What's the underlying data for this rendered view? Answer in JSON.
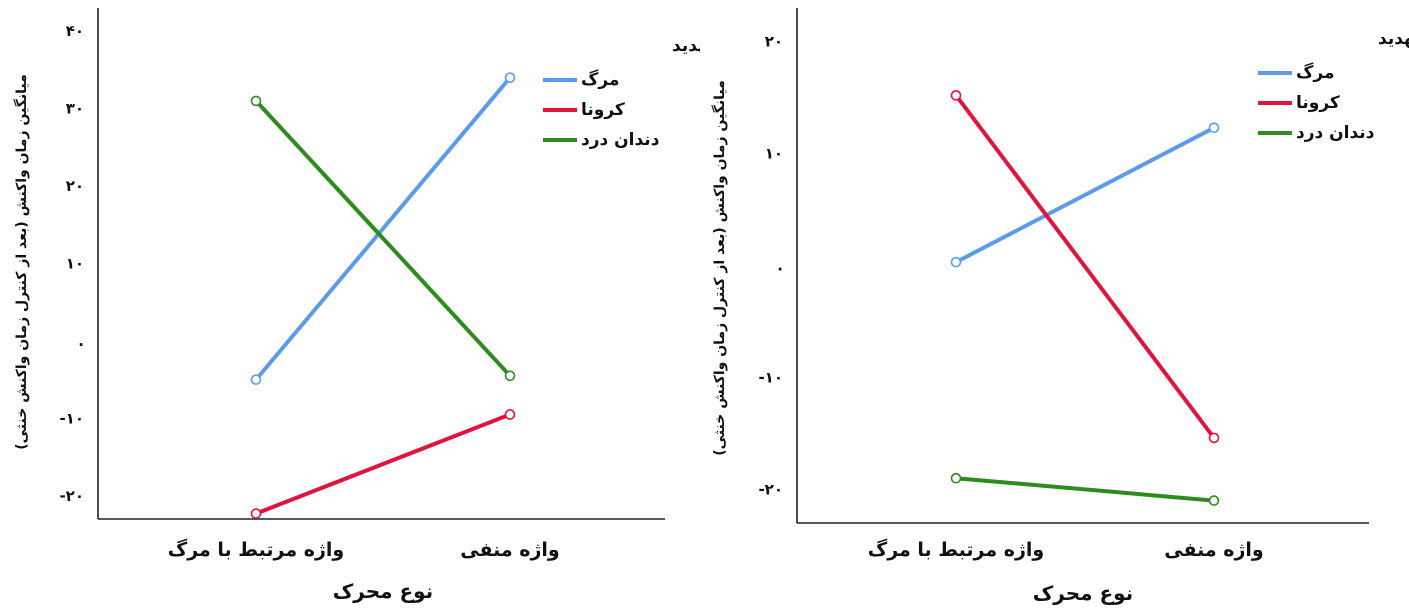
{
  "chart_data": [
    {
      "type": "line",
      "title": "",
      "categories": [
        "واژه مرتبط با مرگ",
        "واژه منفی"
      ],
      "xlabel": "نوع محرک",
      "ylabel": "میانگین زمان واکنش (بعد از کنترل زمان واکنش خنثی)",
      "ylim": [
        -23,
        43
      ],
      "yticks": [
        -20,
        -10,
        0,
        10,
        20,
        30,
        40
      ],
      "ytick_labels": [
        "-۲۰",
        "-۱۰",
        ".",
        "۱۰",
        "۲۰",
        "۳۰",
        "۴۰"
      ],
      "legend_title": "نوع تهدید",
      "legend_position": "top-right",
      "series": [
        {
          "name": "مرگ",
          "color": "#5b9bec",
          "values": [
            -5,
            34
          ]
        },
        {
          "name": "کرونا",
          "color": "#e0143c",
          "values": [
            -22.3,
            -9.5
          ]
        },
        {
          "name": "دندان درد",
          "color": "#2e8b1e",
          "values": [
            31,
            -4.5
          ]
        }
      ]
    },
    {
      "type": "line",
      "title": "",
      "categories": [
        "واژه مرتبط با مرگ",
        "واژه منفی"
      ],
      "xlabel": "نوع محرک",
      "ylabel": "میانگین زمان واکنش (بعد از کنترل زمان واکنش خنثی)",
      "ylim": [
        -23,
        23
      ],
      "yticks": [
        -20,
        -10,
        0,
        10,
        20
      ],
      "ytick_labels": [
        "-۲۰",
        "-۱۰",
        ".",
        "۱۰",
        "۲۰"
      ],
      "legend_title": "نوع تهدید",
      "legend_position": "top-right",
      "series": [
        {
          "name": "مرگ",
          "color": "#5b9bec",
          "values": [
            0.3,
            12.3
          ]
        },
        {
          "name": "کرونا",
          "color": "#e0143c",
          "values": [
            15.2,
            -15.4
          ]
        },
        {
          "name": "دندان درد",
          "color": "#2e8b1e",
          "values": [
            -19,
            -21
          ]
        }
      ]
    }
  ]
}
